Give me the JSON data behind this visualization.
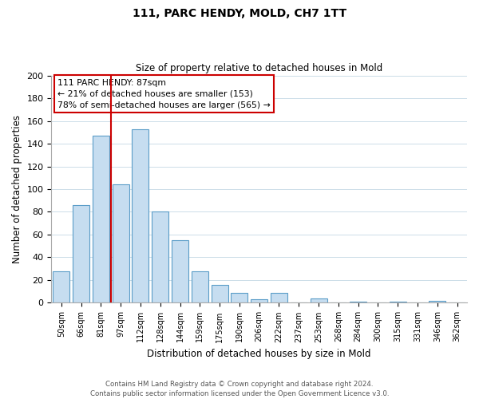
{
  "title": "111, PARC HENDY, MOLD, CH7 1TT",
  "subtitle": "Size of property relative to detached houses in Mold",
  "xlabel": "Distribution of detached houses by size in Mold",
  "ylabel": "Number of detached properties",
  "bar_color": "#c6ddf0",
  "bar_edge_color": "#5a9dc8",
  "categories": [
    "50sqm",
    "66sqm",
    "81sqm",
    "97sqm",
    "112sqm",
    "128sqm",
    "144sqm",
    "159sqm",
    "175sqm",
    "190sqm",
    "206sqm",
    "222sqm",
    "237sqm",
    "253sqm",
    "268sqm",
    "284sqm",
    "300sqm",
    "315sqm",
    "331sqm",
    "346sqm",
    "362sqm"
  ],
  "values": [
    28,
    86,
    147,
    104,
    153,
    80,
    55,
    28,
    16,
    9,
    3,
    9,
    0,
    4,
    0,
    1,
    0,
    1,
    0,
    2,
    0
  ],
  "ylim": [
    0,
    200
  ],
  "yticks": [
    0,
    20,
    40,
    60,
    80,
    100,
    120,
    140,
    160,
    180,
    200
  ],
  "vline_index": 2.5,
  "vline_color": "#cc0000",
  "annotation_line1": "111 PARC HENDY: 87sqm",
  "annotation_line2": "← 21% of detached houses are smaller (153)",
  "annotation_line3": "78% of semi-detached houses are larger (565) →",
  "footer_line1": "Contains HM Land Registry data © Crown copyright and database right 2024.",
  "footer_line2": "Contains public sector information licensed under the Open Government Licence v3.0.",
  "background_color": "#ffffff",
  "grid_color": "#ccdde8"
}
